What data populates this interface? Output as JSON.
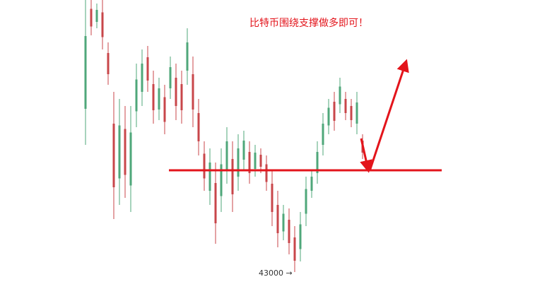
{
  "chart_data": {
    "type": "candlestick",
    "title": "比特币围绕支撑做多即可！",
    "low_label": "43000 →",
    "up_color": "#4fa77a",
    "down_color": "#c8464a",
    "annotation_color": "#e3141b",
    "ylim": [
      42760,
      46850
    ],
    "support_level": 44440,
    "open": [
      45310,
      46725,
      46540,
      46675,
      46100,
      45100,
      44325,
      45025,
      44225,
      45275,
      45550,
      46040,
      45660,
      45300,
      45475,
      45600,
      45750,
      45660,
      45850,
      45800,
      45250,
      44675,
      44150,
      44260,
      44075,
      44450,
      44600,
      44350,
      44590,
      44700,
      44460,
      44660,
      44525,
      44250,
      43950,
      43575,
      43740,
      43490,
      43325,
      43825,
      44150,
      44400,
      44800,
      45075,
      45410,
      45375,
      45450,
      45350,
      45100,
      44860
    ],
    "high": [
      46850,
      46850,
      46800,
      46850,
      46250,
      45550,
      45450,
      45350,
      45350,
      45950,
      46150,
      46200,
      45850,
      45750,
      45650,
      46050,
      45950,
      45850,
      46450,
      46050,
      45450,
      44850,
      44750,
      44550,
      44750,
      45050,
      44850,
      44950,
      45000,
      44850,
      44800,
      44750,
      44650,
      44450,
      44150,
      43950,
      43900,
      43650,
      43850,
      44350,
      44450,
      44850,
      45250,
      45450,
      45550,
      45750,
      45550,
      45450,
      45550,
      44950
    ],
    "low": [
      44800,
      46350,
      46450,
      46150,
      45650,
      43750,
      43950,
      44050,
      43850,
      45050,
      45350,
      45550,
      45100,
      45150,
      44950,
      45450,
      45150,
      45100,
      45650,
      45050,
      44650,
      44150,
      43950,
      43400,
      43850,
      44250,
      43850,
      44150,
      44450,
      44250,
      44350,
      44400,
      44150,
      43650,
      43350,
      43450,
      43250,
      43000,
      43150,
      43650,
      44050,
      44250,
      44650,
      44950,
      45000,
      45250,
      45150,
      45050,
      44950,
      44600
    ],
    "close": [
      46340,
      46475,
      46710,
      46325,
      45800,
      44200,
      45075,
      44375,
      44975,
      45725,
      45950,
      45710,
      45290,
      45600,
      45125,
      45900,
      45350,
      45290,
      46250,
      45300,
      44850,
      44325,
      44550,
      43690,
      44525,
      44850,
      44100,
      44750,
      44860,
      44400,
      44690,
      44490,
      44275,
      43850,
      43550,
      43825,
      43410,
      43160,
      43675,
      44175,
      44350,
      44700,
      45100,
      45325,
      45140,
      45625,
      45250,
      45150,
      45400,
      44690
    ]
  }
}
